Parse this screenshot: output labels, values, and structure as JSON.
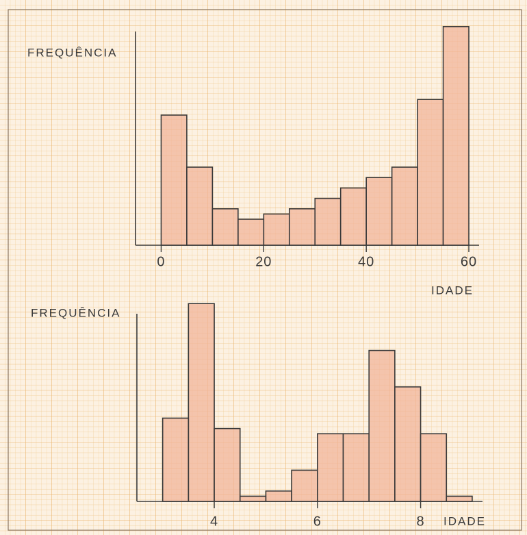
{
  "chart_data": [
    {
      "type": "histogram",
      "ylabel": "FREQUÊNCIA",
      "xlabel": "IDADE",
      "bins": [
        0,
        5,
        10,
        15,
        20,
        25,
        30,
        35,
        40,
        45,
        50,
        55,
        60
      ],
      "values": [
        25,
        15,
        7,
        5,
        6,
        7,
        9,
        11,
        13,
        15,
        28,
        42
      ],
      "color": "#f2b49a",
      "xlim": [
        -5,
        62
      ],
      "xticks": [
        0,
        20,
        40,
        60
      ],
      "ylim": [
        0,
        45
      ]
    },
    {
      "type": "histogram",
      "ylabel": "FREQUÊNCIA",
      "xlabel": "IDADE",
      "bins": [
        3,
        3.5,
        4,
        4.5,
        5,
        5.5,
        6,
        6.5,
        7,
        7.5,
        8,
        8.5,
        9
      ],
      "values": [
        16,
        38,
        14,
        1,
        2,
        6,
        13,
        13,
        29,
        22,
        13,
        1
      ],
      "color": "#f2b49a",
      "xlim": [
        2.5,
        9.2
      ],
      "xticks": [
        4,
        6,
        8
      ],
      "ylim": [
        0,
        40
      ]
    }
  ]
}
